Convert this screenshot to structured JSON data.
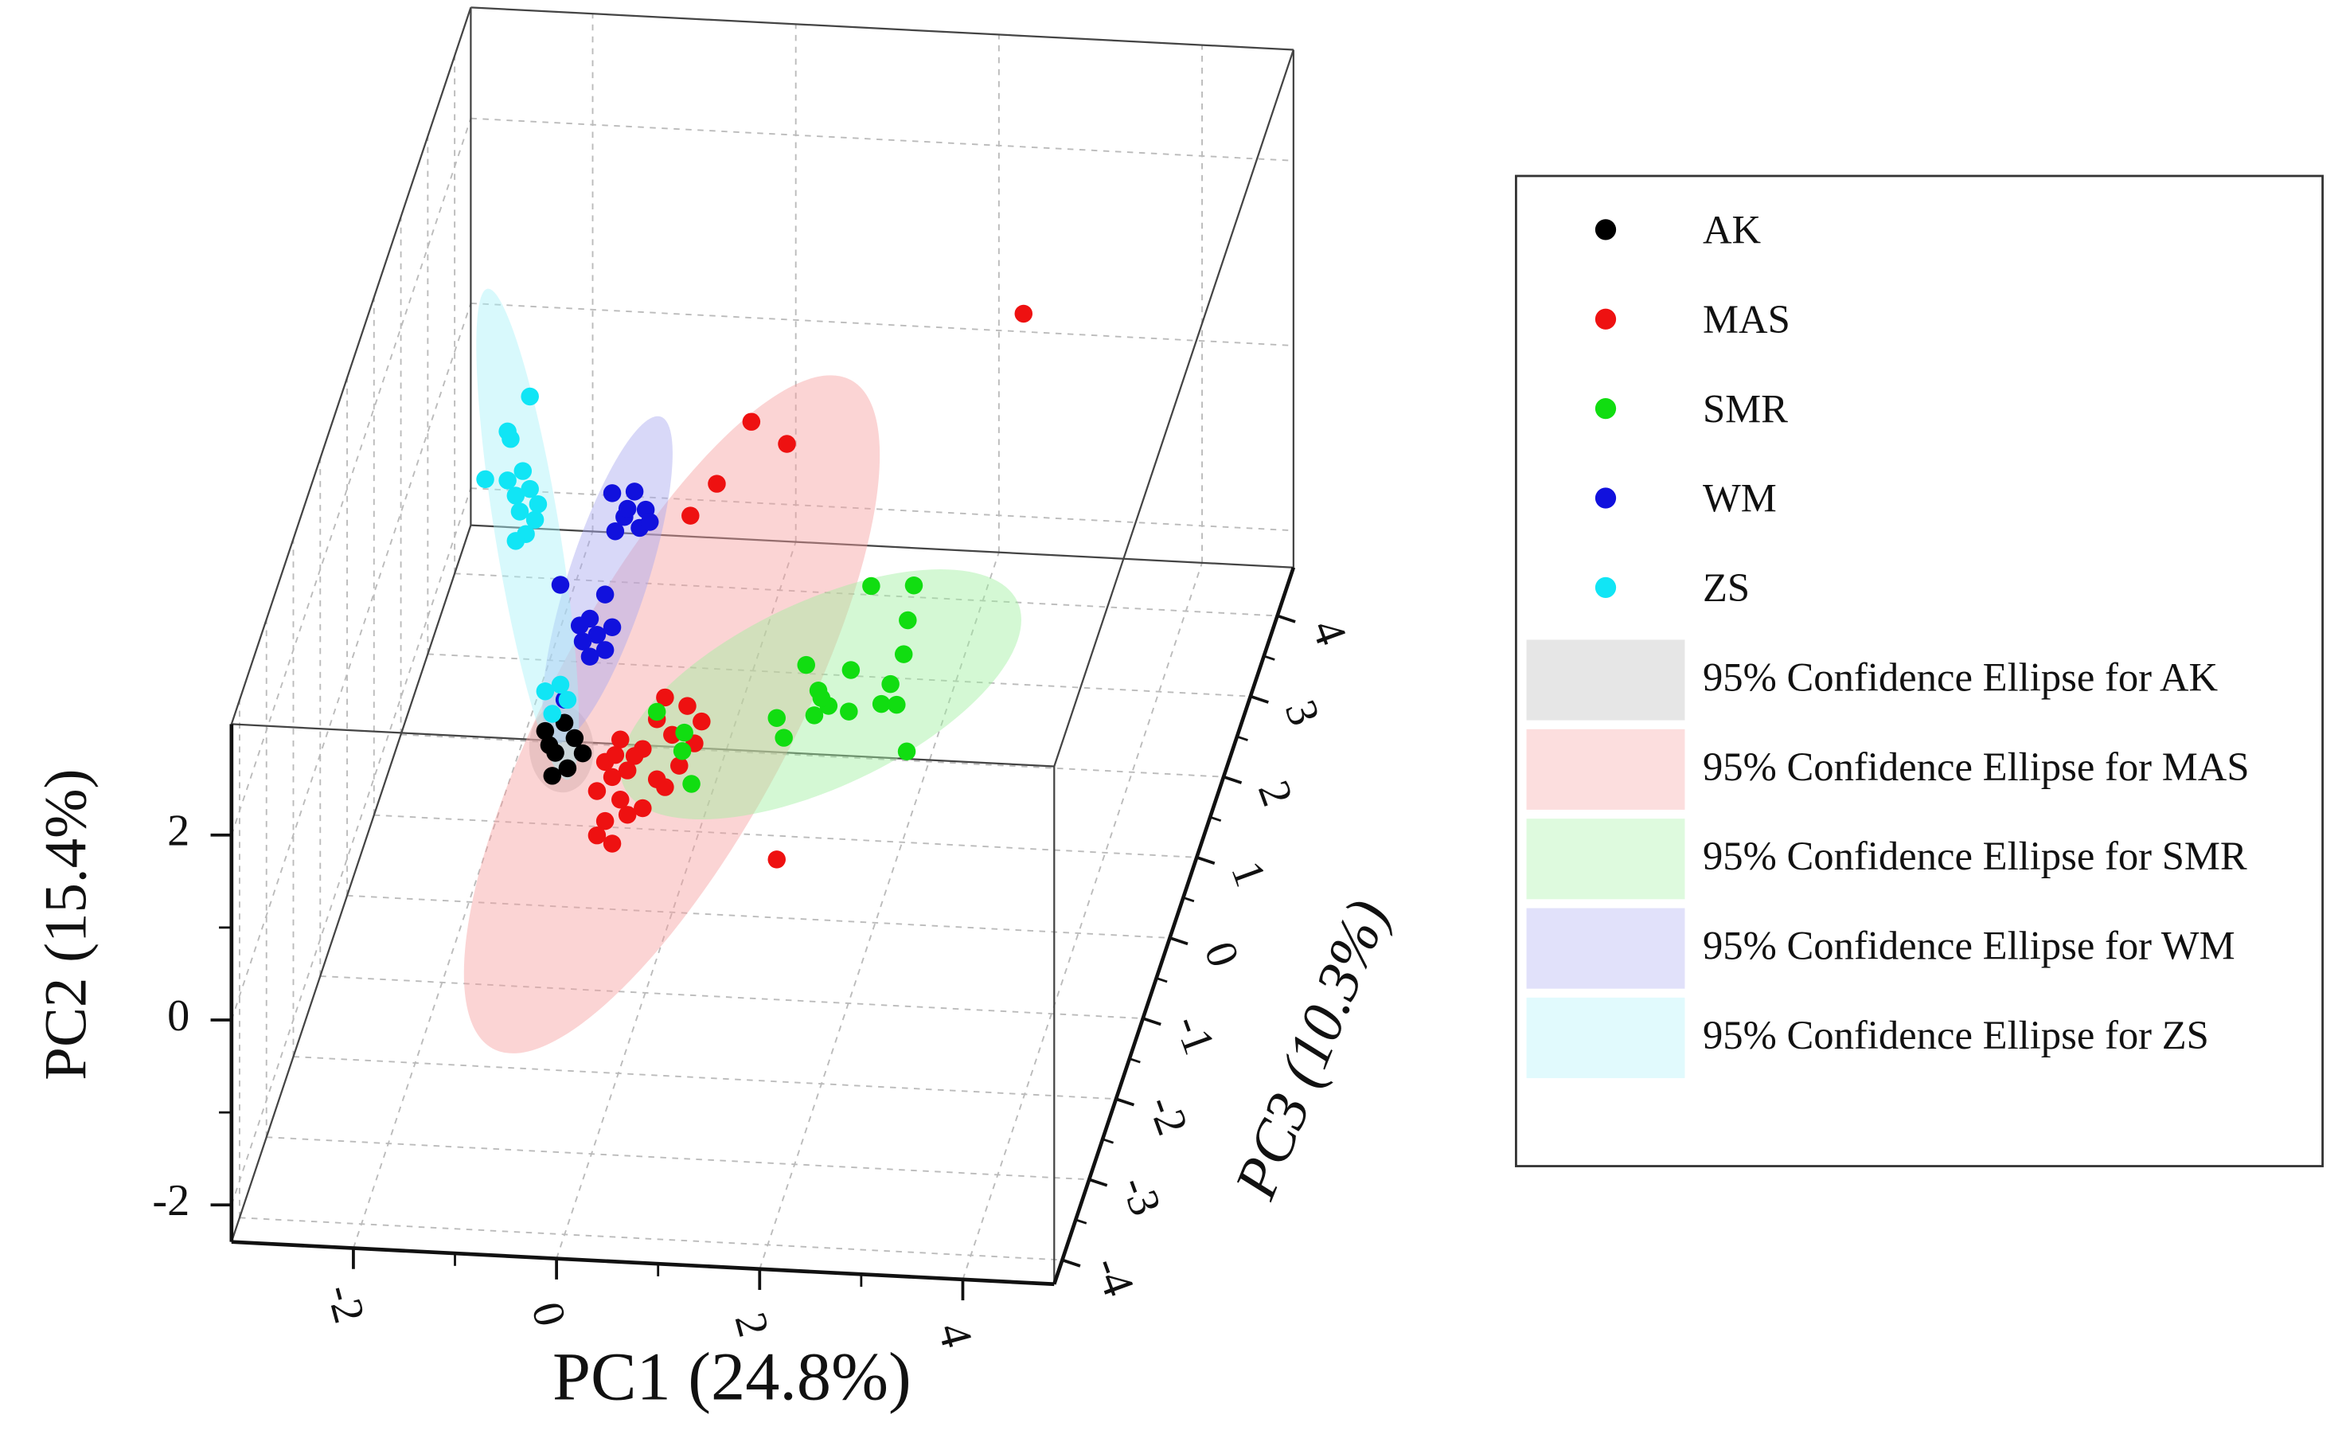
{
  "chart_data": {
    "type": "scatter3d",
    "xlabel": "PC1 (24.8%)",
    "ylabel": "PC2 (15.4%)",
    "zlabel": "PC3 (10.3%)",
    "xlim": [
      -3.2,
      4.9
    ],
    "ylim": [
      -2.4,
      3.2
    ],
    "zlim": [
      -4.3,
      4.6
    ],
    "xticks": [
      -2,
      0,
      2,
      4
    ],
    "yticks": [
      -2,
      0,
      2
    ],
    "zticks": [
      -4,
      -3,
      -2,
      -1,
      0,
      1,
      2,
      3,
      4
    ],
    "grid": true,
    "legend": "right",
    "series": [
      {
        "name": "AK",
        "color": "#000000",
        "x": [
          -1.25,
          -1.15,
          -1.03,
          -0.96,
          -1.18,
          -1.06,
          -0.88,
          -1.21
        ],
        "y": [
          -0.51,
          -0.74,
          -0.9,
          -0.57,
          -0.99,
          -0.41,
          -0.73,
          -0.66
        ]
      },
      {
        "name": "MAS",
        "color": "#ee1111",
        "x": [
          3.46,
          0.78,
          1.13,
          0.44,
          0.18,
          1.03,
          -0.07,
          0.15,
          0.29,
          -0.15,
          -0.51,
          -0.29,
          -0.66,
          -0.44,
          -0.59,
          -0.15,
          0.07,
          -0.74,
          -0.51,
          -0.29,
          -0.07,
          -0.66,
          -0.74,
          -0.59,
          -0.44,
          -0.37,
          -0.56,
          0,
          0.22
        ],
        "y": [
          4.27,
          2.95,
          2.73,
          2.26,
          1.9,
          -1.77,
          -0.08,
          -0.16,
          -0.32,
          -0.32,
          -0.56,
          -0.65,
          -0.81,
          -0.89,
          -0.97,
          -0.97,
          -0.81,
          -1.13,
          -1.21,
          -1.29,
          -1.05,
          -1.45,
          -1.61,
          -1.69,
          -1.37,
          -0.73,
          -0.73,
          -0.48,
          -0.56
        ]
      },
      {
        "name": "SMR",
        "color": "#11dd11",
        "x": [
          1.96,
          2.38,
          2.32,
          2.28,
          1.32,
          1.76,
          1.44,
          2.15,
          2.06,
          1.54,
          1.74,
          1.4,
          2.21,
          1.03,
          1.1,
          2.31,
          0.12,
          0.1,
          0.19,
          -0.15,
          1.47
        ],
        "y": [
          1.24,
          1.27,
          0.89,
          0.52,
          0.35,
          0.32,
          0.08,
          0.19,
          -0.03,
          -0.08,
          -0.13,
          -0.19,
          -0.03,
          -0.24,
          -0.45,
          -0.53,
          -0.45,
          -0.65,
          -1.0,
          -0.24,
          0
        ]
      },
      {
        "name": "WM",
        "color": "#1111dd",
        "x": [
          -0.59,
          -0.37,
          -0.26,
          -0.47,
          -0.32,
          -0.56,
          -0.44,
          -0.22,
          -1.1,
          -0.66,
          -0.81,
          -0.74,
          -0.88,
          -0.66,
          -0.81,
          -0.91,
          -1.06,
          -0.59
        ],
        "y": [
          2.1,
          2.13,
          1.94,
          1.85,
          1.74,
          1.69,
          1.94,
          1.81,
          1.08,
          1.0,
          0.73,
          0.56,
          0.48,
          0.4,
          0.32,
          0.65,
          -0.16,
          0.65
        ]
      },
      {
        "name": "ZS",
        "color": "#11e5f5",
        "x": [
          -1.4,
          -1.62,
          -1.59,
          -1.84,
          -1.62,
          -1.47,
          -1.54,
          -1.4,
          -1.5,
          -1.35,
          -1.44,
          -1.54,
          -1.32,
          -1.1,
          -1.03,
          -1.25,
          -1.18
        ],
        "y": [
          3.1,
          2.71,
          2.63,
          2.18,
          2.18,
          2.29,
          2.02,
          2.1,
          1.85,
          1.77,
          1.61,
          1.53,
          1.94,
          0,
          -0.16,
          -0.08,
          -0.32
        ]
      }
    ],
    "ellipses": [
      {
        "name": "95% Confidence Ellipse for AK",
        "color": "#b8b8b8"
      },
      {
        "name": "95% Confidence Ellipse for MAS",
        "color": "#f7a0a0"
      },
      {
        "name": "95% Confidence Ellipse for SMR",
        "color": "#a0f0a0"
      },
      {
        "name": "95% Confidence Ellipse for WM",
        "color": "#a8a8f0"
      },
      {
        "name": "95% Confidence Ellipse for ZS",
        "color": "#a8f2f8"
      }
    ]
  }
}
